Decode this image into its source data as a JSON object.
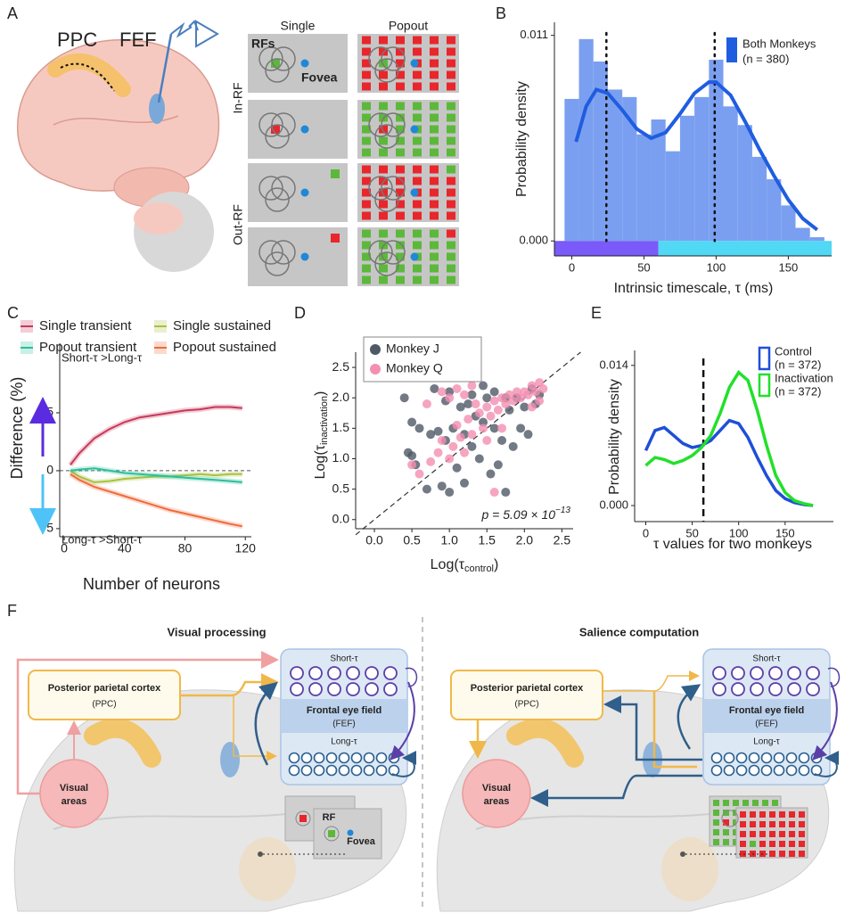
{
  "panel_labels": [
    "A",
    "B",
    "C",
    "D",
    "E",
    "F"
  ],
  "panel_a": {
    "brain_labels": [
      "PPC",
      "FEF"
    ],
    "columns": [
      "Single",
      "Popout"
    ],
    "rows": [
      "In-RF",
      "Out-RF"
    ],
    "rf_label": "RFs",
    "fovea_label": "Fovea"
  },
  "chart_data": [
    {
      "type": "histogram",
      "bins": [
        -5,
        5,
        15,
        25,
        35,
        45,
        55,
        65,
        75,
        85,
        95,
        105,
        115,
        125,
        135,
        145,
        155,
        165,
        175
      ],
      "counts": [
        0.0076,
        0.0108,
        0.0096,
        0.0081,
        0.0077,
        0.0057,
        0.0065,
        0.0048,
        0.0067,
        0.0077,
        0.0097,
        0.0072,
        0.0062,
        0.0045,
        0.0033,
        0.0019,
        0.0007,
        0.0002
      ],
      "color": "#7b9ff0",
      "series": [
        {
          "name": "Both Monkeys",
          "legend_note": "(n = 380)",
          "color": "#1f5de0",
          "x": [
            3,
            10,
            17,
            25,
            35,
            45,
            55,
            65,
            75,
            85,
            95,
            100,
            110,
            120,
            130,
            140,
            150,
            160,
            170
          ],
          "values": [
            0.0053,
            0.0072,
            0.0081,
            0.0079,
            0.007,
            0.006,
            0.0055,
            0.0058,
            0.0068,
            0.0079,
            0.0085,
            0.0085,
            0.0078,
            0.0064,
            0.0049,
            0.0035,
            0.0022,
            0.0012,
            0.0006
          ]
        }
      ],
      "y_label": "Probability density",
      "x_label": "Intrinsic timescale, τ (ms)",
      "xlim": [
        -12,
        180
      ],
      "ylim": [
        -0.0008,
        0.0117
      ],
      "xticks": [
        0,
        50,
        100,
        150
      ],
      "yticks": [
        {
          "value": 0,
          "label": "0.000"
        },
        {
          "value": 0.011,
          "label": "0.011"
        }
      ],
      "vlines": [
        24,
        99
      ],
      "ranges": [
        {
          "from": -12,
          "to": 60,
          "color": "#7a5af8"
        },
        {
          "from": 60,
          "to": 180,
          "color": "#50d8f4"
        }
      ]
    },
    {
      "type": "line",
      "x": [
        4,
        10,
        20,
        30,
        40,
        50,
        60,
        70,
        80,
        90,
        100,
        110,
        118
      ],
      "series": [
        {
          "name": "Single transient",
          "color": "#c8385a",
          "values": [
            0.5,
            1.5,
            2.8,
            3.6,
            4.2,
            4.6,
            4.8,
            5.0,
            5.2,
            5.3,
            5.5,
            5.5,
            5.4
          ]
        },
        {
          "name": "Single sustained",
          "color": "#a9c23f",
          "values": [
            0,
            -0.5,
            -1.0,
            -0.9,
            -0.7,
            -0.6,
            -0.5,
            -0.5,
            -0.4,
            -0.3,
            -0.4,
            -0.3,
            -0.3
          ]
        },
        {
          "name": "Popout transient",
          "color": "#2bbf9a",
          "values": [
            0,
            0.1,
            0.2,
            0,
            -0.2,
            -0.3,
            -0.4,
            -0.5,
            -0.6,
            -0.7,
            -0.8,
            -0.9,
            -1.0
          ]
        },
        {
          "name": "Popout sustained",
          "color": "#f06a3c",
          "values": [
            -0.3,
            -0.8,
            -1.4,
            -1.8,
            -2.2,
            -2.6,
            -3.0,
            -3.4,
            -3.7,
            -4.0,
            -4.3,
            -4.6,
            -4.8
          ]
        }
      ],
      "y_label": "Difference (%)",
      "x_label": "Number of neurons",
      "annotations": [
        "Short-τ >Long-τ",
        "Long-τ >Short-τ"
      ],
      "xlim": [
        -3,
        124
      ],
      "ylim": [
        -5.7,
        11
      ],
      "xticks": [
        0,
        40,
        80,
        120
      ],
      "yticks": [
        -5,
        0,
        5
      ],
      "zero_line": true
    },
    {
      "type": "scatter",
      "series": [
        {
          "name": "Monkey J",
          "color": "#4f5966",
          "x": [
            0.4,
            0.45,
            0.5,
            0.55,
            0.5,
            0.6,
            0.7,
            0.75,
            0.8,
            0.85,
            0.9,
            0.95,
            1.0,
            1.05,
            1.1,
            1.15,
            1.2,
            1.25,
            1.3,
            1.35,
            1.4,
            1.45,
            1.5,
            1.55,
            1.6,
            1.65,
            1.7,
            1.75,
            1.8,
            1.85,
            1.9,
            1.95,
            2.0,
            2.05,
            2.1,
            2.15,
            2.2,
            1.3,
            1.45,
            1.6,
            1.75,
            1.2,
            0.95,
            1.0
          ],
          "values": [
            2.0,
            1.1,
            1.05,
            0.9,
            1.6,
            1.5,
            0.5,
            1.4,
            2.15,
            1.45,
            0.55,
            1.3,
            0.45,
            1.5,
            0.85,
            1.85,
            0.6,
            1.9,
            1.2,
            1.7,
            1.0,
            1.6,
            2.0,
            0.75,
            1.5,
            0.9,
            1.3,
            0.45,
            1.8,
            1.2,
            2.0,
            1.5,
            1.85,
            1.4,
            2.15,
            1.9,
            2.05,
            2.05,
            2.2,
            2.1,
            2.0,
            1.4,
            1.95,
            2.1
          ]
        },
        {
          "name": "Monkey Q",
          "color": "#f48fb1",
          "x": [
            0.5,
            0.6,
            0.75,
            0.85,
            0.9,
            1.0,
            1.05,
            1.1,
            1.15,
            1.2,
            1.25,
            1.3,
            1.35,
            1.4,
            1.45,
            1.5,
            1.55,
            1.6,
            1.65,
            1.7,
            1.75,
            1.8,
            1.85,
            1.9,
            1.95,
            2.0,
            2.05,
            2.1,
            2.15,
            2.2,
            2.25,
            1.0,
            1.1,
            1.2,
            1.3,
            0.7,
            0.9,
            1.5,
            1.6,
            1.7,
            2.2,
            2.1
          ],
          "values": [
            0.9,
            0.75,
            0.95,
            1.1,
            1.3,
            1.0,
            1.2,
            1.55,
            1.35,
            1.1,
            1.65,
            1.4,
            1.9,
            1.75,
            1.5,
            1.85,
            1.7,
            1.95,
            1.8,
            2.0,
            1.9,
            2.05,
            1.95,
            2.1,
            2.0,
            2.1,
            2.05,
            2.2,
            2.1,
            2.25,
            2.15,
            2.0,
            2.15,
            2.05,
            2.2,
            1.9,
            2.1,
            1.3,
            0.45,
            1.5,
            1.95,
            1.85
          ]
        }
      ],
      "x_label": {
        "main": "Log(τ",
        "sub": "control",
        "close": ")"
      },
      "y_label": {
        "main": "Log(τ",
        "sub": "inactivation",
        "close": ")"
      },
      "annotation": {
        "main": "p = 5.09 × 10",
        "sup": "−13"
      },
      "xlim": [
        -0.25,
        2.65
      ],
      "ylim": [
        -0.15,
        2.75
      ],
      "xticks": [
        {
          "value": 0,
          "label": "0.0"
        },
        {
          "value": 0.5,
          "label": "0.5"
        },
        {
          "value": 1,
          "label": "1.0"
        },
        {
          "value": 1.5,
          "label": "1.5"
        },
        {
          "value": 2,
          "label": "2.0"
        },
        {
          "value": 2.5,
          "label": "2.5"
        }
      ],
      "yticks": [
        {
          "value": 0,
          "label": "0.0"
        },
        {
          "value": 0.5,
          "label": "0.5"
        },
        {
          "value": 1,
          "label": "1.0"
        },
        {
          "value": 1.5,
          "label": "1.5"
        },
        {
          "value": 2,
          "label": "2.0"
        },
        {
          "value": 2.5,
          "label": "2.5"
        }
      ],
      "identity_line": true
    },
    {
      "type": "line",
      "x": [
        0,
        10,
        20,
        30,
        40,
        50,
        60,
        70,
        80,
        90,
        100,
        110,
        120,
        130,
        140,
        150,
        160,
        170,
        180
      ],
      "series": [
        {
          "name": "Control",
          "legend_note": "(n = 372)",
          "color": "#1f4fd8",
          "values": [
            0.0055,
            0.0075,
            0.0078,
            0.007,
            0.0062,
            0.0058,
            0.006,
            0.0065,
            0.0075,
            0.0085,
            0.0082,
            0.0068,
            0.0048,
            0.003,
            0.0015,
            0.0007,
            0.0003,
            0.0001,
            0.0
          ]
        },
        {
          "name": "Inactivation",
          "legend_note": "(n = 372)",
          "color": "#22e02a",
          "values": [
            0.004,
            0.0048,
            0.0046,
            0.0042,
            0.0045,
            0.005,
            0.0058,
            0.007,
            0.0092,
            0.0118,
            0.0133,
            0.0125,
            0.0095,
            0.006,
            0.003,
            0.0013,
            0.0005,
            0.0002,
            0.0
          ]
        }
      ],
      "y_label": "Probability density",
      "x_label": "τ values for two monkeys",
      "xlim": [
        -12,
        202
      ],
      "ylim": [
        -0.0016,
        0.0155
      ],
      "xticks": [
        0,
        50,
        100,
        150
      ],
      "yticks": [
        {
          "value": 0,
          "label": "0.000"
        },
        {
          "value": 0.014,
          "label": "0.014"
        }
      ],
      "vlines": [
        62
      ]
    }
  ],
  "panel_f": {
    "panels": [
      {
        "title": "Visual processing"
      },
      {
        "title": "Salience computation"
      }
    ],
    "fef": {
      "short": "Short-τ",
      "name": "Frontal eye field",
      "abbr": "(FEF)",
      "long": "Long-τ"
    },
    "ppc": {
      "name": "Posterior parietal cortex",
      "abbr": "(PPC)"
    },
    "visual": [
      "Visual",
      "areas"
    ],
    "rf": "RF",
    "fovea": "Fovea"
  }
}
